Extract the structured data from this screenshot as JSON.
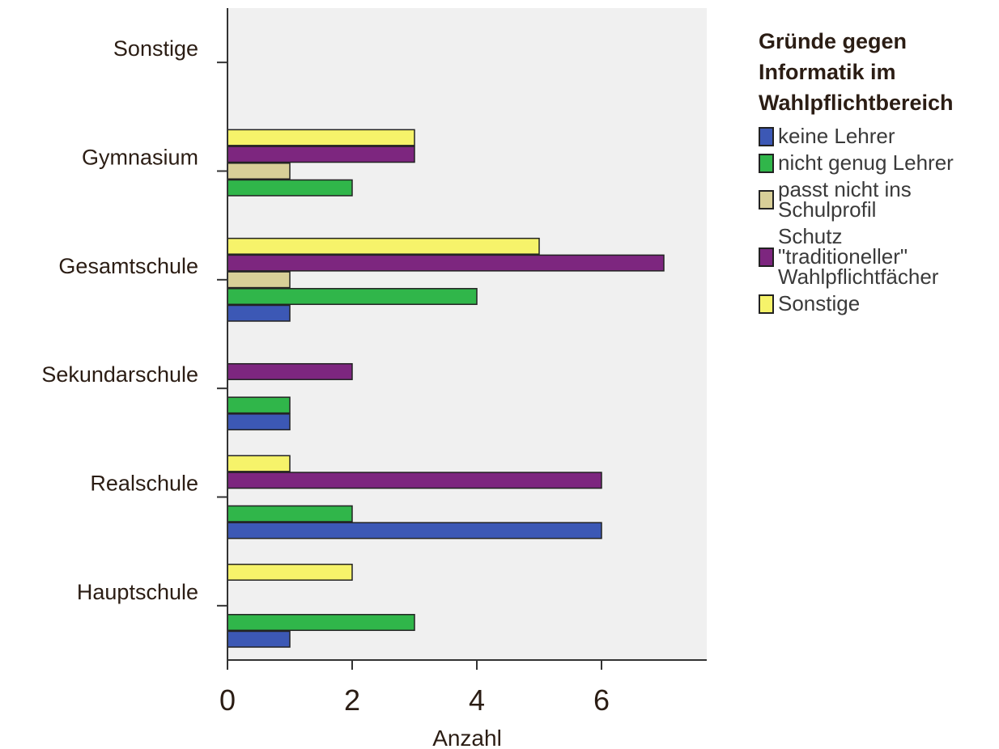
{
  "chart_data": {
    "type": "bar",
    "orientation": "horizontal",
    "categories": [
      "Hauptschule",
      "Realschule",
      "Sekundarschule",
      "Gesamtschule",
      "Gymnasium",
      "Sonstige"
    ],
    "series": [
      {
        "name": "keine Lehrer",
        "color": "#3c58b5",
        "values": [
          1,
          6,
          1,
          1,
          0,
          0
        ]
      },
      {
        "name": "nicht genug Lehrer",
        "color": "#30b64a",
        "values": [
          3,
          2,
          1,
          4,
          2,
          0
        ]
      },
      {
        "name": "passt nicht ins\nSchulprofil",
        "color": "#d8cf98",
        "values": [
          0,
          0,
          0,
          1,
          1,
          0
        ]
      },
      {
        "name": "Schutz\n\"traditioneller\"\nWahlpflichtfächer",
        "color": "#7d267f",
        "values": [
          0,
          6,
          2,
          7,
          3,
          0
        ]
      },
      {
        "name": "Sonstige",
        "color": "#f6f36a",
        "values": [
          2,
          1,
          0,
          5,
          3,
          0
        ]
      }
    ],
    "xlabel": "Anzahl",
    "ylabel": "",
    "xlim": [
      0,
      7.7
    ],
    "xticks": [
      "0",
      "2",
      "4",
      "6"
    ],
    "grid": false,
    "legend_title": "Gründe gegen\nInformatik im\nWahlpflichtbereich",
    "legend_position": "right"
  }
}
